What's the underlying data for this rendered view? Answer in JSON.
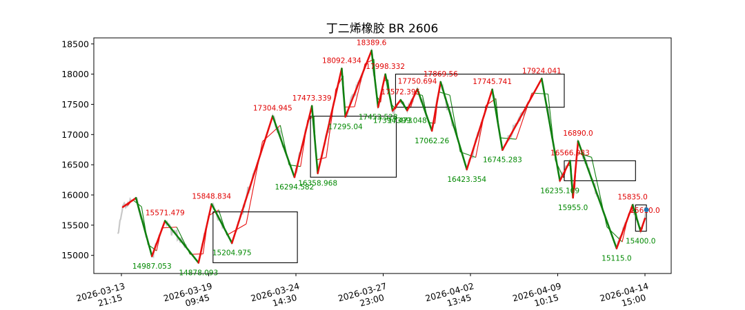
{
  "chart_data": {
    "type": "line",
    "title": "丁二烯橡胶 BR 2606",
    "xlabel": "",
    "ylabel": "",
    "ylim": [
      14700,
      18600
    ],
    "yticks": [
      15000,
      15500,
      16000,
      16500,
      17000,
      17500,
      18000,
      18500
    ],
    "x_ticks": [
      {
        "label": "2026-03-13\n21:15",
        "idx": 0
      },
      {
        "label": "2026-03-19\n09:45",
        "idx": 120
      },
      {
        "label": "2026-03-24\n14:30",
        "idx": 240
      },
      {
        "label": "2026-03-27\n23:00",
        "idx": 360
      },
      {
        "label": "2026-04-02\n13:45",
        "idx": 480
      },
      {
        "label": "2026-04-09\n10:15",
        "idx": 600
      },
      {
        "label": "2026-04-14\n15:00",
        "idx": 720
      }
    ],
    "price_range_idx": [
      -5,
      722
    ],
    "pivots": [
      {
        "idx": 2,
        "price": 15800,
        "type": "high",
        "label": ""
      },
      {
        "idx": 20,
        "price": 15950,
        "type": "high",
        "label": ""
      },
      {
        "idx": 42,
        "price": 14987.053,
        "type": "low",
        "label": "14987.053"
      },
      {
        "idx": 60,
        "price": 15571.479,
        "type": "high",
        "label": "15571.479"
      },
      {
        "idx": 106,
        "price": 14878.093,
        "type": "low",
        "label": "14878.093"
      },
      {
        "idx": 124,
        "price": 15848.834,
        "type": "high",
        "label": "15848.834"
      },
      {
        "idx": 152,
        "price": 15204.975,
        "type": "low",
        "label": "15204.975"
      },
      {
        "idx": 208,
        "price": 17304.945,
        "type": "high",
        "label": "17304.945"
      },
      {
        "idx": 238,
        "price": 16294.582,
        "type": "low",
        "label": "16294.582"
      },
      {
        "idx": 262,
        "price": 17473.339,
        "type": "high",
        "label": "17473.339"
      },
      {
        "idx": 270,
        "price": 16358.968,
        "type": "low",
        "label": "16358.968"
      },
      {
        "idx": 303,
        "price": 18092.434,
        "type": "high",
        "label": "18092.434"
      },
      {
        "idx": 308,
        "price": 17295.04,
        "type": "low",
        "label": "17295.04"
      },
      {
        "idx": 344,
        "price": 18389.6,
        "type": "high",
        "label": "18389.6"
      },
      {
        "idx": 353,
        "price": 17453.528,
        "type": "low",
        "label": "17453.528"
      },
      {
        "idx": 363,
        "price": 17998.332,
        "type": "high",
        "label": "17998.332"
      },
      {
        "idx": 373,
        "price": 17394.473,
        "type": "low",
        "label": "17394.473"
      },
      {
        "idx": 384,
        "price": 17572.395,
        "type": "high",
        "label": "17572.395"
      },
      {
        "idx": 393,
        "price": 17399.048,
        "type": "low",
        "label": "17399.048"
      },
      {
        "idx": 407,
        "price": 17750.694,
        "type": "high",
        "label": "17750.694"
      },
      {
        "idx": 427,
        "price": 17062.26,
        "type": "low",
        "label": "17062.26"
      },
      {
        "idx": 439,
        "price": 17869.56,
        "type": "high",
        "label": "17869.56"
      },
      {
        "idx": 475,
        "price": 16423.354,
        "type": "low",
        "label": "16423.354"
      },
      {
        "idx": 510,
        "price": 17745.741,
        "type": "high",
        "label": "17745.741"
      },
      {
        "idx": 524,
        "price": 16745.283,
        "type": "low",
        "label": "16745.283"
      },
      {
        "idx": 578,
        "price": 17924.041,
        "type": "high",
        "label": "17924.041"
      },
      {
        "idx": 603,
        "price": 16235.109,
        "type": "low",
        "label": "16235.109"
      },
      {
        "idx": 617,
        "price": 16566.983,
        "type": "high",
        "label": "16566.983"
      },
      {
        "idx": 621,
        "price": 15955.0,
        "type": "low",
        "label": "15955.0"
      },
      {
        "idx": 628,
        "price": 16890.0,
        "type": "high",
        "label": "16890.0"
      },
      {
        "idx": 681,
        "price": 15115.0,
        "type": "low",
        "label": "15115.0"
      },
      {
        "idx": 703,
        "price": 15835.0,
        "type": "high",
        "label": "15835.0"
      },
      {
        "idx": 714,
        "price": 15400.0,
        "type": "low",
        "label": "15400.0"
      },
      {
        "idx": 720,
        "price": 15610.0,
        "type": "high",
        "label": "15610.0"
      }
    ],
    "boxes": [
      {
        "idx_start": 126,
        "idx_end": 242,
        "low": 14878,
        "high": 15720
      },
      {
        "idx_start": 260,
        "idx_end": 378,
        "low": 16294,
        "high": 17304
      },
      {
        "idx_start": 377,
        "idx_end": 609,
        "low": 17453,
        "high": 18000
      },
      {
        "idx_start": 609,
        "idx_end": 707,
        "low": 16235,
        "high": 16566
      },
      {
        "idx_start": 707,
        "idx_end": 722,
        "low": 15400,
        "high": 15835
      }
    ],
    "last_point": {
      "idx": 722,
      "price": 15755
    },
    "colors": {
      "price": "#c8c8c8",
      "up": "#e81010",
      "down": "#108010",
      "box": "#000000",
      "marker": "#1f77b4"
    }
  }
}
